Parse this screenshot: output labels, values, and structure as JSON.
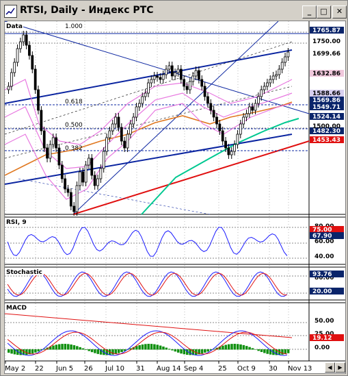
{
  "window": {
    "title": "RTSI, Daily - Индекс РТС",
    "buttons": {
      "minimize": "_",
      "maximize": "□",
      "close": "✕"
    }
  },
  "colors": {
    "price_axis_bg": "#ffffff",
    "bull_candle": "#ffffff",
    "bear_candle": "#000000",
    "ma_orange": "#e07820",
    "ma_green": "#00c890",
    "trend_red": "#e01010",
    "channel_blue": "#0a24a0",
    "bollinger_pink": "#e878e0",
    "label_navy": "#0a246a",
    "label_pink": "#f0c8dc",
    "label_red": "#e01010",
    "macd_hist_green": "#109010"
  },
  "main_panel": {
    "label": "Data",
    "fib_labels": {
      "f1000": "1.000",
      "f618": "0.618",
      "f500": "0.500",
      "f382": "0.382"
    },
    "price_ticks": [
      "1750.00",
      "1500.00"
    ],
    "price_labels": [
      {
        "text": "1765.87",
        "style": "navy"
      },
      {
        "text": "1699.66",
        "style": "black"
      },
      {
        "text": "1632.86",
        "style": "pink"
      },
      {
        "text": "1588.66",
        "style": "lavender"
      },
      {
        "text": "1569.86",
        "style": "navy"
      },
      {
        "text": "1549.71",
        "style": "navy"
      },
      {
        "text": "1524.14",
        "style": "navy"
      },
      {
        "text": "1482.30",
        "style": "navy"
      },
      {
        "text": "1453.43",
        "style": "red"
      }
    ]
  },
  "rsi_panel": {
    "label": "RSI, 9",
    "ticks": [
      "80.00",
      "60.00",
      "40.00"
    ],
    "labels": [
      {
        "text": "75.00",
        "style": "red"
      },
      {
        "text": "67.90",
        "style": "navy"
      }
    ]
  },
  "stoch_panel": {
    "label": "Stochastic",
    "ticks": [
      "80.00"
    ],
    "labels": [
      {
        "text": "93.76",
        "style": "navy"
      },
      {
        "text": "20.00",
        "style": "navy"
      }
    ]
  },
  "macd_panel": {
    "label": "MACD",
    "ticks": [
      "50.00",
      "25.00",
      "0.00"
    ],
    "labels": [
      {
        "text": "19.12",
        "style": "red"
      }
    ]
  },
  "date_axis": [
    "May 2",
    "22",
    "Jun 5",
    "26",
    "Jul 10",
    "31",
    "Aug 14",
    "Sep 4",
    "25",
    "Oct 9",
    "30",
    "Nov 13"
  ]
}
